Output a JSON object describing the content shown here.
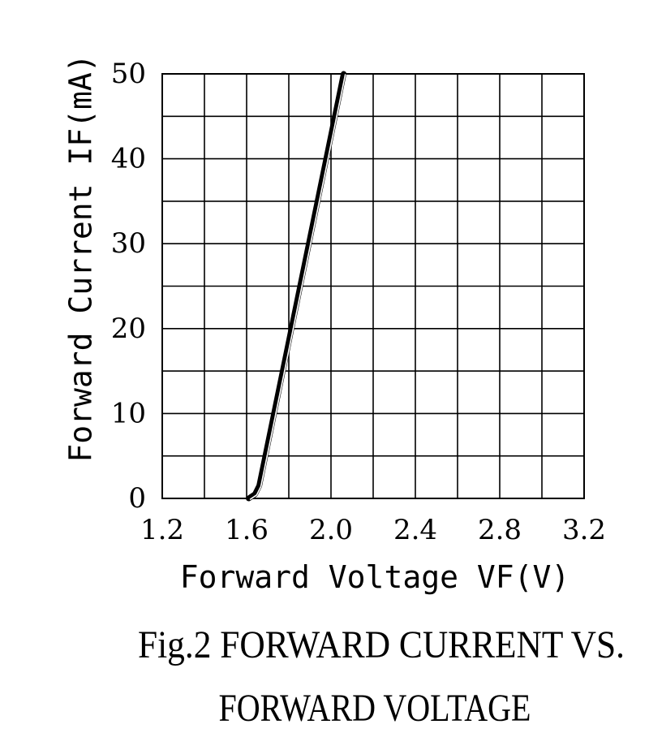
{
  "chart_data": {
    "type": "line",
    "xlabel": "Forward Voltage VF(V)",
    "ylabel": "Forward Current IF(mA)",
    "xlim": [
      1.2,
      3.2
    ],
    "ylim": [
      0,
      50
    ],
    "x_ticks": [
      "1.2",
      "1.6",
      "2.0",
      "2.4",
      "2.8",
      "3.2"
    ],
    "y_ticks": [
      "0",
      "10",
      "20",
      "30",
      "40",
      "50"
    ],
    "grid": true,
    "legend": "none",
    "series": [
      {
        "x": [
          1.61,
          1.64,
          1.66,
          2.06
        ],
        "y": [
          0,
          0.5,
          1.5,
          50
        ]
      }
    ]
  },
  "caption": {
    "line1": "Fig.2 FORWARD CURRENT VS.",
    "line2": "FORWARD VOLTAGE"
  }
}
